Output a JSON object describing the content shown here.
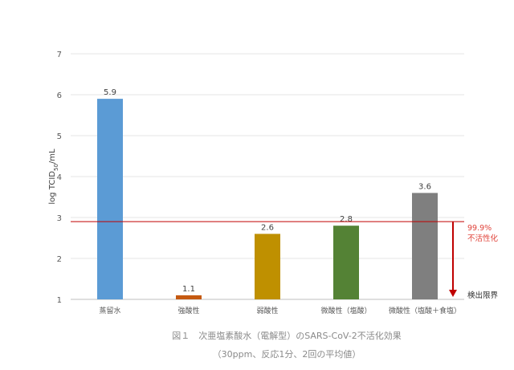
{
  "chart_data": {
    "type": "bar",
    "categories": [
      "蒸留水",
      "強酸性",
      "弱酸性",
      "微酸性（塩酸）",
      "微酸性（塩酸＋食塩）"
    ],
    "values": [
      5.9,
      1.1,
      2.6,
      2.8,
      3.6
    ],
    "colors": [
      "#5b9bd5",
      "#c55a11",
      "#bf9000",
      "#548235",
      "#7f7f7f"
    ],
    "ylabel": "log TCID50/mL",
    "ylabel_main": "log TCID",
    "ylabel_sub": "50",
    "ylabel_tail": "/mL",
    "ylim": [
      1,
      7
    ],
    "yticks": [
      "1",
      "2",
      "3",
      "4",
      "5",
      "6",
      "7"
    ],
    "grid": true,
    "reference_line": {
      "value": 2.9,
      "color": "#c00000",
      "label_line1": "99.9%",
      "label_line2": "不活性化"
    },
    "baseline_label": "検出限界",
    "arrow_color": "#c00000"
  },
  "caption": {
    "line1": "図１　次亜塩素酸水（電解型）のSARS-CoV-2不活化効果",
    "line2": "（30ppm、反応1分、2回の平均値）"
  }
}
